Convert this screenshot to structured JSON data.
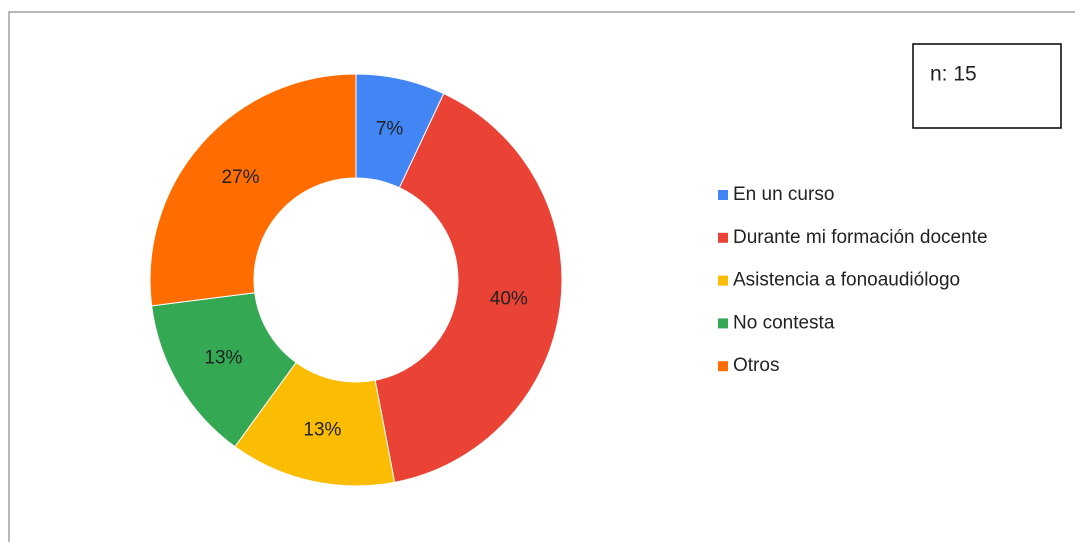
{
  "chart_data": {
    "type": "pie",
    "categories": [
      "En un curso",
      "Durante mi formación docente",
      "Asistencia a fonoaudiólogo",
      "No contesta",
      "Otros"
    ],
    "values": [
      7,
      40,
      13,
      13,
      27
    ],
    "value_labels": [
      "7%",
      "40%",
      "13%",
      "13%",
      "27%"
    ],
    "colors": [
      "#4285f4",
      "#ea4335",
      "#fbbc04",
      "#34a853",
      "#ff6d01"
    ],
    "annotation": "n: 15"
  }
}
